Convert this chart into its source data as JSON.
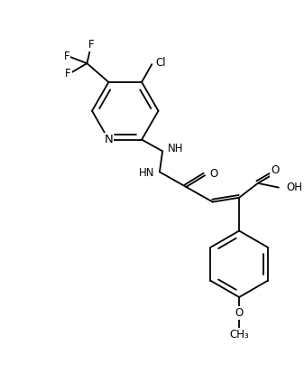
{
  "figure_width": 3.37,
  "figure_height": 4.34,
  "dpi": 100,
  "bg_color": "#ffffff",
  "line_color": "#000000",
  "lw": 1.3,
  "fs": 8.5,
  "xlim": [
    -1.5,
    8.5
  ],
  "ylim": [
    -1.0,
    11.5
  ]
}
